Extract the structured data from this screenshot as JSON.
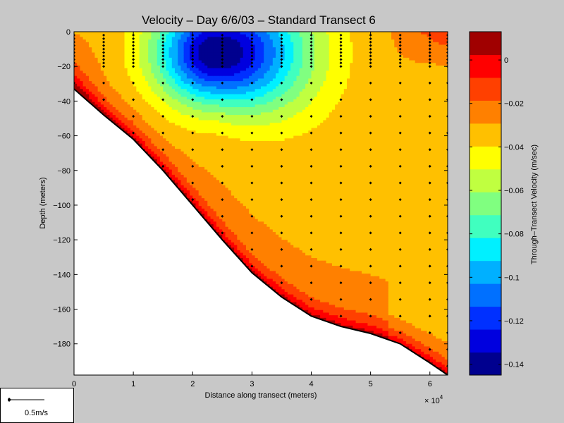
{
  "chart_data": {
    "type": "heatmap",
    "title": "Velocity – Day 6/6/03 – Standard Transect 6",
    "xlabel": "Distance along transect (meters)",
    "ylabel": "Depth (meters)",
    "x_multiplier": "× 10",
    "x_multiplier_exp": "4",
    "xlim": [
      0,
      6.3
    ],
    "ylim": [
      -198,
      0
    ],
    "x_ticks": [
      "0",
      "1",
      "2",
      "3",
      "4",
      "5",
      "6"
    ],
    "y_ticks": [
      "0",
      "−20",
      "−40",
      "−60",
      "−80",
      "−100",
      "−120",
      "−140",
      "−160",
      "−180"
    ],
    "x_tick_values": [
      0,
      1,
      2,
      3,
      4,
      5,
      6
    ],
    "y_tick_values": [
      0,
      -20,
      -40,
      -60,
      -80,
      -100,
      -120,
      -140,
      -160,
      -180
    ],
    "colorbar": {
      "label": "Through–Transect Velocity (m/sec)",
      "range": [
        -0.145,
        0.013
      ],
      "tick_values": [
        0,
        -0.02,
        -0.04,
        -0.06,
        -0.08,
        -0.1,
        -0.12,
        -0.14
      ],
      "tick_labels": [
        "0",
        "−0.02",
        "−0.04",
        "−0.06",
        "−0.08",
        "−0.1",
        "−0.12",
        "−0.14"
      ],
      "colors": [
        "#00008f",
        "#0000df",
        "#0030ff",
        "#0070ff",
        "#00b0ff",
        "#00f0ff",
        "#40ffbf",
        "#80ff80",
        "#c0ff40",
        "#ffff00",
        "#ffc000",
        "#ff8000",
        "#ff4000",
        "#ff0000",
        "#a00000"
      ]
    },
    "bottom_profile": {
      "x": [
        0,
        0.5,
        1,
        1.5,
        2,
        2.5,
        3,
        3.5,
        4,
        4.5,
        5,
        5.5,
        6,
        6.3
      ],
      "depth": [
        -33,
        -48,
        -62,
        -80,
        -100,
        -120,
        -139,
        -153,
        -164,
        -170,
        -174,
        -180,
        -191,
        -198
      ]
    },
    "samples": {
      "x": [
        0,
        0.5,
        1,
        1.5,
        2,
        2.5,
        3,
        3.5,
        4,
        4.5,
        5,
        5.5,
        6,
        6.3
      ],
      "spacing": 4
    },
    "core": {
      "x": 2.4,
      "depth": -12,
      "value": -0.145
    }
  },
  "legend": {
    "scale_label": "0.5m/s"
  }
}
